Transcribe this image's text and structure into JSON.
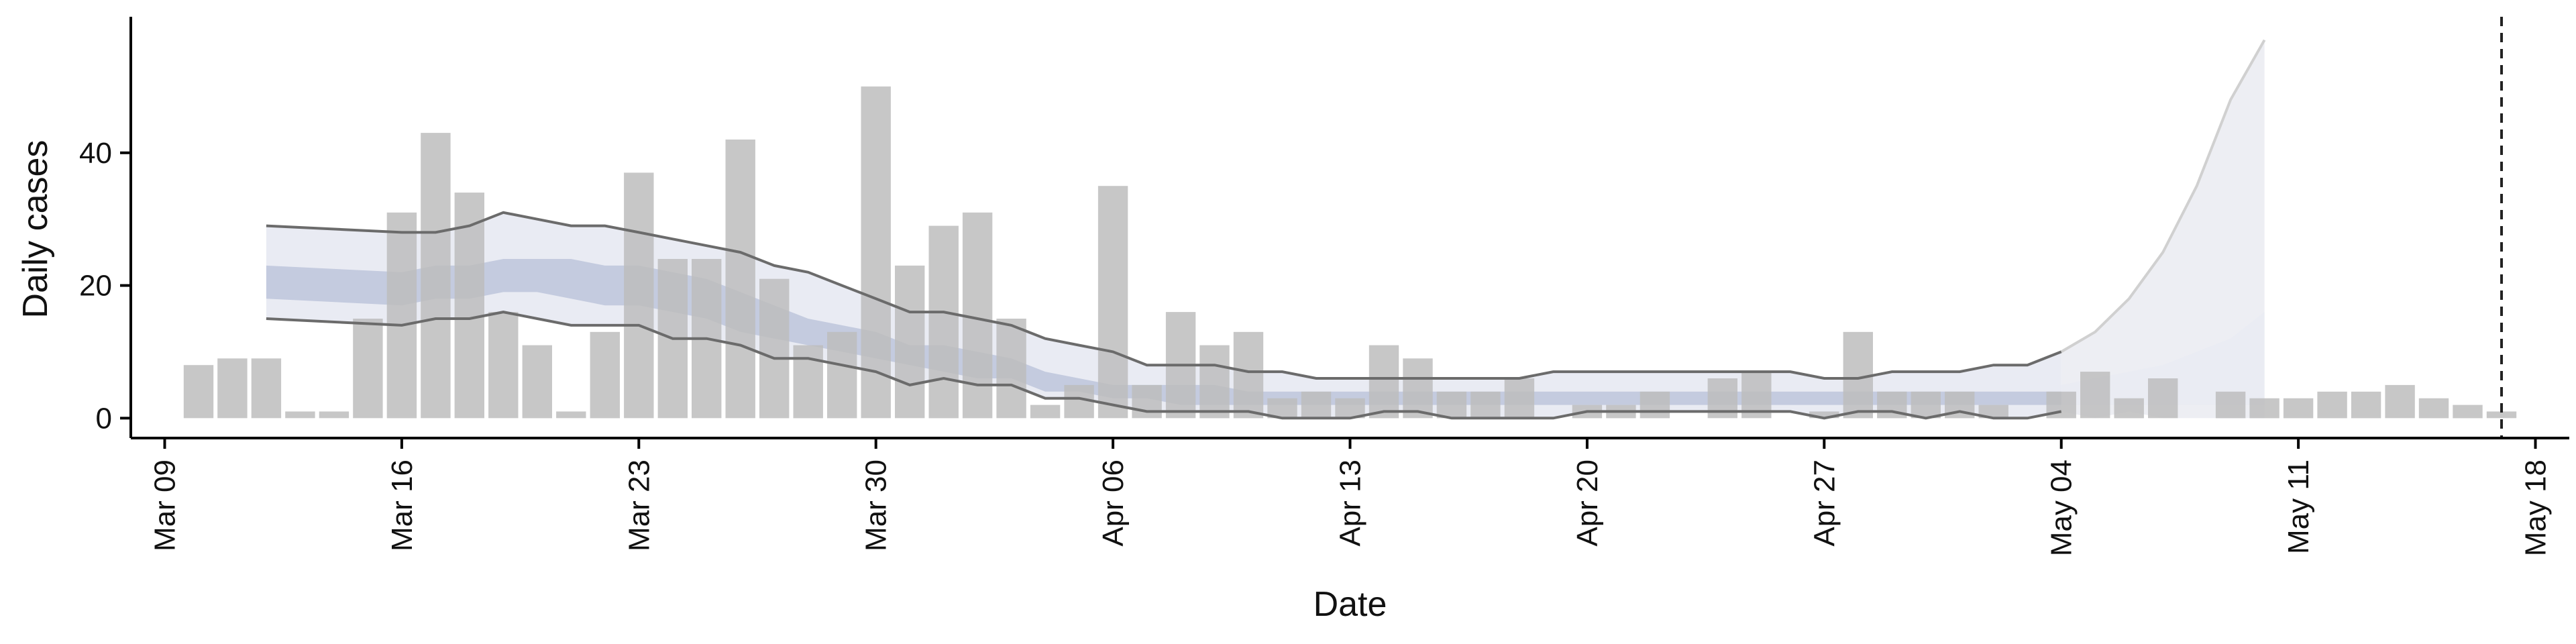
{
  "chart_data": {
    "type": "bar",
    "xlabel": "Date",
    "ylabel": "Daily cases",
    "x_axis": {
      "type": "date",
      "range": [
        "2020-03-08",
        "2020-05-19"
      ],
      "ticks": [
        {
          "date": "2020-03-09",
          "label": "Mar 09"
        },
        {
          "date": "2020-03-16",
          "label": "Mar 16"
        },
        {
          "date": "2020-03-23",
          "label": "Mar 23"
        },
        {
          "date": "2020-03-30",
          "label": "Mar 30"
        },
        {
          "date": "2020-04-06",
          "label": "Apr 06"
        },
        {
          "date": "2020-04-13",
          "label": "Apr 13"
        },
        {
          "date": "2020-04-20",
          "label": "Apr 20"
        },
        {
          "date": "2020-04-27",
          "label": "Apr 27"
        },
        {
          "date": "2020-05-04",
          "label": "May 04"
        },
        {
          "date": "2020-05-11",
          "label": "May 11"
        },
        {
          "date": "2020-05-18",
          "label": "May 18"
        }
      ]
    },
    "y_axis": {
      "range": [
        -3,
        60
      ],
      "ticks": [
        0,
        20,
        40
      ]
    },
    "grid": false,
    "vline_date": "2020-05-17",
    "colors": {
      "bars": "#bdbdbd",
      "band_outer": "#e9ebf3",
      "band_inner": "#c4cbdf",
      "bound_lines": "#6b6b6b",
      "forecast": "#eaebf1",
      "axis": "#000000"
    },
    "cases": {
      "dates": [
        "2020-03-10",
        "2020-03-11",
        "2020-03-12",
        "2020-03-13",
        "2020-03-14",
        "2020-03-15",
        "2020-03-16",
        "2020-03-17",
        "2020-03-18",
        "2020-03-19",
        "2020-03-20",
        "2020-03-21",
        "2020-03-22",
        "2020-03-23",
        "2020-03-24",
        "2020-03-25",
        "2020-03-26",
        "2020-03-27",
        "2020-03-28",
        "2020-03-29",
        "2020-03-30",
        "2020-03-31",
        "2020-04-01",
        "2020-04-02",
        "2020-04-03",
        "2020-04-04",
        "2020-04-05",
        "2020-04-06",
        "2020-04-07",
        "2020-04-08",
        "2020-04-09",
        "2020-04-10",
        "2020-04-11",
        "2020-04-12",
        "2020-04-13",
        "2020-04-14",
        "2020-04-15",
        "2020-04-16",
        "2020-04-17",
        "2020-04-18",
        "2020-04-19",
        "2020-04-20",
        "2020-04-21",
        "2020-04-22",
        "2020-04-23",
        "2020-04-24",
        "2020-04-25",
        "2020-04-26",
        "2020-04-27",
        "2020-04-28",
        "2020-04-29",
        "2020-04-30",
        "2020-05-01",
        "2020-05-02",
        "2020-05-03",
        "2020-05-04",
        "2020-05-05",
        "2020-05-06",
        "2020-05-07",
        "2020-05-08",
        "2020-05-09",
        "2020-05-10",
        "2020-05-11",
        "2020-05-12",
        "2020-05-13",
        "2020-05-14",
        "2020-05-15",
        "2020-05-16",
        "2020-05-17"
      ],
      "values": [
        8,
        9,
        9,
        1,
        1,
        15,
        31,
        43,
        34,
        16,
        11,
        1,
        13,
        37,
        24,
        24,
        42,
        21,
        11,
        13,
        50,
        23,
        29,
        31,
        15,
        2,
        5,
        35,
        5,
        16,
        11,
        13,
        3,
        4,
        3,
        11,
        9,
        4,
        4,
        6,
        0,
        2,
        2,
        4,
        0,
        6,
        7,
        0,
        1,
        13,
        4,
        4,
        4,
        2,
        0,
        4,
        7,
        3,
        6,
        0,
        4,
        3,
        3,
        4,
        4,
        5,
        3,
        2,
        1
      ]
    },
    "estimate": {
      "dates": [
        "2020-03-12",
        "2020-03-16",
        "2020-03-17",
        "2020-03-18",
        "2020-03-19",
        "2020-03-20",
        "2020-03-21",
        "2020-03-22",
        "2020-03-23",
        "2020-03-24",
        "2020-03-25",
        "2020-03-26",
        "2020-03-27",
        "2020-03-28",
        "2020-03-29",
        "2020-03-30",
        "2020-03-31",
        "2020-04-01",
        "2020-04-02",
        "2020-04-03",
        "2020-04-04",
        "2020-04-05",
        "2020-04-06",
        "2020-04-07",
        "2020-04-08",
        "2020-04-09",
        "2020-04-10",
        "2020-04-11",
        "2020-04-12",
        "2020-04-13",
        "2020-04-14",
        "2020-04-15",
        "2020-04-16",
        "2020-04-17",
        "2020-04-18",
        "2020-04-19",
        "2020-04-20",
        "2020-04-21",
        "2020-04-22",
        "2020-04-23",
        "2020-04-24",
        "2020-04-25",
        "2020-04-26",
        "2020-04-27",
        "2020-04-28",
        "2020-04-29",
        "2020-04-30",
        "2020-05-01",
        "2020-05-02",
        "2020-05-03",
        "2020-05-04"
      ],
      "lower90": [
        15,
        14,
        15,
        15,
        16,
        15,
        14,
        14,
        14,
        12,
        12,
        11,
        9,
        9,
        8,
        7,
        5,
        6,
        5,
        5,
        3,
        3,
        2,
        1,
        1,
        1,
        1,
        0,
        0,
        0,
        1,
        1,
        0,
        0,
        0,
        0,
        1,
        1,
        1,
        1,
        1,
        1,
        1,
        0,
        1,
        1,
        0,
        1,
        0,
        0,
        1
      ],
      "lower50": [
        18,
        17,
        18,
        18,
        19,
        19,
        18,
        17,
        17,
        16,
        15,
        13,
        12,
        11,
        10,
        9,
        8,
        7,
        6,
        6,
        4,
        4,
        3,
        3,
        2,
        2,
        2,
        2,
        2,
        2,
        2,
        2,
        2,
        2,
        2,
        2,
        2,
        2,
        2,
        2,
        2,
        2,
        2,
        2,
        2,
        2,
        2,
        2,
        2,
        2,
        2
      ],
      "upper50": [
        23,
        22,
        23,
        23,
        24,
        24,
        24,
        23,
        23,
        22,
        21,
        19,
        17,
        15,
        14,
        13,
        11,
        11,
        10,
        9,
        7,
        6,
        5,
        5,
        5,
        5,
        4,
        4,
        4,
        4,
        4,
        4,
        4,
        4,
        4,
        4,
        4,
        4,
        4,
        4,
        4,
        4,
        4,
        4,
        4,
        4,
        4,
        4,
        4,
        4,
        4
      ],
      "upper90": [
        29,
        28,
        28,
        29,
        31,
        30,
        29,
        29,
        28,
        27,
        26,
        25,
        23,
        22,
        20,
        18,
        16,
        16,
        15,
        14,
        12,
        11,
        10,
        8,
        8,
        8,
        7,
        7,
        6,
        6,
        6,
        6,
        6,
        6,
        6,
        7,
        7,
        7,
        7,
        7,
        7,
        7,
        7,
        6,
        6,
        7,
        7,
        7,
        8,
        8,
        10
      ]
    },
    "forecast": {
      "dates": [
        "2020-05-04",
        "2020-05-05",
        "2020-05-06",
        "2020-05-07",
        "2020-05-08",
        "2020-05-09",
        "2020-05-10"
      ],
      "lower90": [
        1,
        0,
        1,
        0,
        0,
        0,
        0
      ],
      "lower50": [
        2,
        2,
        2,
        2,
        2,
        2,
        2
      ],
      "upper50": [
        5,
        6,
        7,
        8,
        10,
        12,
        16
      ],
      "upper90": [
        10,
        13,
        18,
        25,
        35,
        48,
        57
      ]
    }
  }
}
